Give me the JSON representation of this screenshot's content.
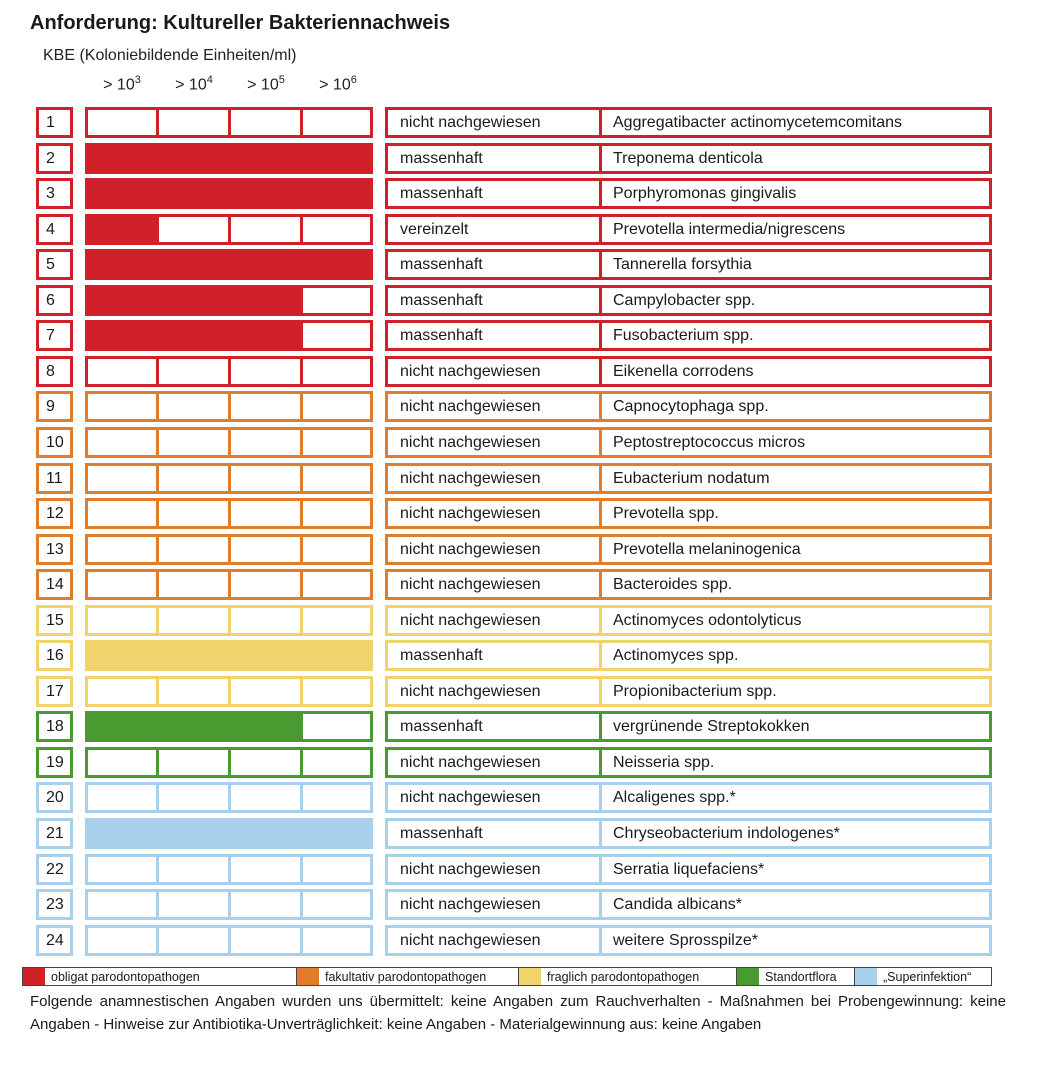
{
  "title": "Anforderung: Kultureller Bakteriennachweis",
  "kbe_label": "KBE (Koloniebildende Einheiten/ml)",
  "thresholds": [
    {
      "base": "> 10",
      "exp": "3"
    },
    {
      "base": "> 10",
      "exp": "4"
    },
    {
      "base": "> 10",
      "exp": "5"
    },
    {
      "base": "> 10",
      "exp": "6"
    }
  ],
  "colors": {
    "red": "#d0202a",
    "orange": "#e07c2a",
    "yellow": "#f0d36a",
    "green": "#4a9a32",
    "blue": "#a8d0ea"
  },
  "rows": [
    {
      "num": "1",
      "group": "red",
      "level": 0,
      "result": "nicht nachgewiesen",
      "organism": "Aggregatibacter actinomycetemcomitans"
    },
    {
      "num": "2",
      "group": "red",
      "level": 4,
      "result": "massenhaft",
      "organism": "Treponema denticola"
    },
    {
      "num": "3",
      "group": "red",
      "level": 4,
      "result": "massenhaft",
      "organism": "Porphyromonas gingivalis"
    },
    {
      "num": "4",
      "group": "red",
      "level": 1,
      "result": "vereinzelt",
      "organism": "Prevotella intermedia/nigrescens"
    },
    {
      "num": "5",
      "group": "red",
      "level": 4,
      "result": "massenhaft",
      "organism": "Tannerella forsythia"
    },
    {
      "num": "6",
      "group": "red",
      "level": 3,
      "result": "massenhaft",
      "organism": "Campylobacter spp."
    },
    {
      "num": "7",
      "group": "red",
      "level": 3,
      "result": "massenhaft",
      "organism": "Fusobacterium spp."
    },
    {
      "num": "8",
      "group": "red",
      "level": 0,
      "result": "nicht nachgewiesen",
      "organism": "Eikenella corrodens"
    },
    {
      "num": "9",
      "group": "orange",
      "level": 0,
      "result": "nicht nachgewiesen",
      "organism": "Capnocytophaga spp."
    },
    {
      "num": "10",
      "group": "orange",
      "level": 0,
      "result": "nicht nachgewiesen",
      "organism": "Peptostreptococcus micros"
    },
    {
      "num": "11",
      "group": "orange",
      "level": 0,
      "result": "nicht nachgewiesen",
      "organism": "Eubacterium nodatum"
    },
    {
      "num": "12",
      "group": "orange",
      "level": 0,
      "result": "nicht nachgewiesen",
      "organism": "Prevotella spp."
    },
    {
      "num": "13",
      "group": "orange",
      "level": 0,
      "result": "nicht nachgewiesen",
      "organism": "Prevotella melaninogenica"
    },
    {
      "num": "14",
      "group": "orange",
      "level": 0,
      "result": "nicht nachgewiesen",
      "organism": "Bacteroides spp."
    },
    {
      "num": "15",
      "group": "yellow",
      "level": 0,
      "result": "nicht nachgewiesen",
      "organism": "Actinomyces odontolyticus"
    },
    {
      "num": "16",
      "group": "yellow",
      "level": 4,
      "result": "massenhaft",
      "organism": "Actinomyces spp."
    },
    {
      "num": "17",
      "group": "yellow",
      "level": 0,
      "result": "nicht nachgewiesen",
      "organism": "Propionibacterium spp."
    },
    {
      "num": "18",
      "group": "green",
      "level": 3,
      "result": "massenhaft",
      "organism": "vergrünende Streptokokken"
    },
    {
      "num": "19",
      "group": "green",
      "level": 0,
      "result": "nicht nachgewiesen",
      "organism": "Neisseria spp."
    },
    {
      "num": "20",
      "group": "blue",
      "level": 0,
      "result": "nicht nachgewiesen",
      "organism": "Alcaligenes spp.*"
    },
    {
      "num": "21",
      "group": "blue",
      "level": 4,
      "result": "massenhaft",
      "organism": "Chryseobacterium indologenes*"
    },
    {
      "num": "22",
      "group": "blue",
      "level": 0,
      "result": "nicht nachgewiesen",
      "organism": "Serratia liquefaciens*"
    },
    {
      "num": "23",
      "group": "blue",
      "level": 0,
      "result": "nicht nachgewiesen",
      "organism": "Candida albicans*"
    },
    {
      "num": "24",
      "group": "blue",
      "level": 0,
      "result": "nicht nachgewiesen",
      "organism": "weitere Sprosspilze*"
    }
  ],
  "legend": [
    {
      "group": "red",
      "label": "obligat parodontopathogen"
    },
    {
      "group": "orange",
      "label": "fakultativ parodontopathogen"
    },
    {
      "group": "yellow",
      "label": "fraglich parodontopathogen"
    },
    {
      "group": "green",
      "label": "Standortflora"
    },
    {
      "group": "blue",
      "label": "„Superinfektion“"
    }
  ],
  "note": "Folgende anamnestischen Angaben wurden uns übermittelt: keine Angaben zum Rauchverhalten - Maßnahmen bei Probengewinnung: keine Angaben - Hinweise zur Antibiotika-Unverträglichkeit: keine Angaben - Materialgewinnung aus: keine Angaben"
}
